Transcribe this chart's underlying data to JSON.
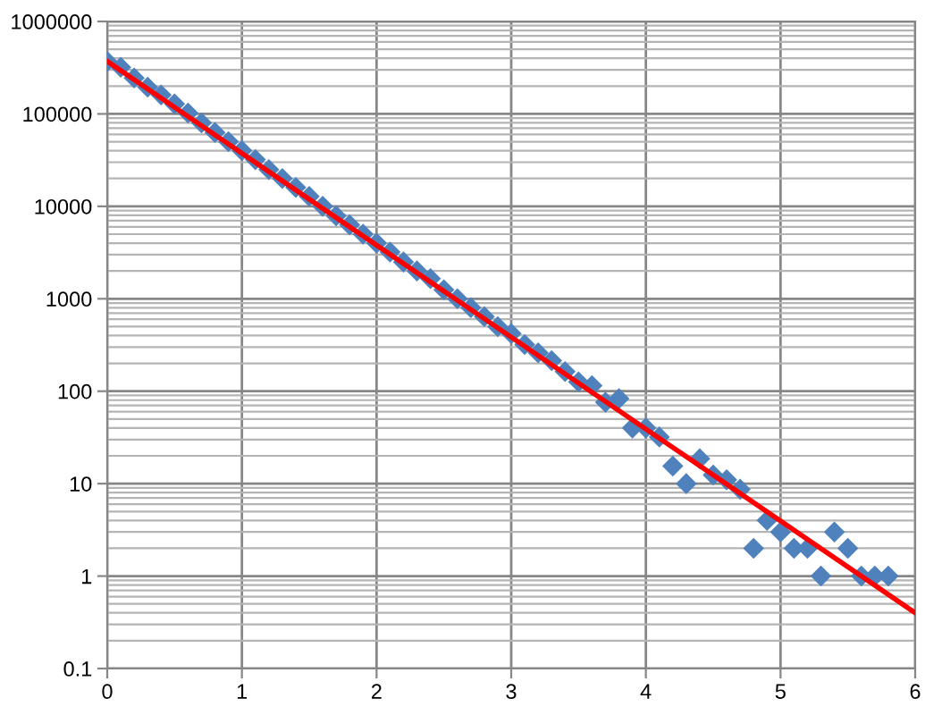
{
  "chart_data": {
    "type": "scatter",
    "log": "y",
    "grid": true,
    "legend": false,
    "xlim": [
      0,
      6
    ],
    "ylim": [
      0.1,
      1000000
    ],
    "xticks": [
      0,
      1,
      2,
      3,
      4,
      5,
      6
    ],
    "yticks": [
      0.1,
      1,
      10,
      100,
      1000,
      10000,
      100000,
      1000000
    ],
    "series": [
      {
        "color": "#4f81bd",
        "marker": "diamond",
        "x": [
          0,
          0.1,
          0.2,
          0.3,
          0.4,
          0.5,
          0.6,
          0.7,
          0.8,
          0.9,
          1.0,
          1.1,
          1.2,
          1.3,
          1.4,
          1.5,
          1.6,
          1.7,
          1.8,
          1.9,
          2.0,
          2.1,
          2.2,
          2.3,
          2.4,
          2.5,
          2.6,
          2.7,
          2.8,
          2.9,
          3.0,
          3.1,
          3.2,
          3.3,
          3.4,
          3.5,
          3.6,
          3.7,
          3.8,
          3.9,
          4.0,
          4.1,
          4.2,
          4.3,
          4.4,
          4.5,
          4.6,
          4.7,
          4.8,
          4.9,
          5.0,
          5.1,
          5.2,
          5.3,
          5.4,
          5.5,
          5.6,
          5.7,
          5.8
        ],
        "values": [
          370000,
          320000,
          245000,
          195000,
          160000,
          128000,
          102000,
          80000,
          63000,
          50000,
          40000,
          32000,
          25000,
          20000,
          16000,
          12800,
          10000,
          7900,
          6300,
          5000,
          4000,
          3200,
          2500,
          2000,
          1650,
          1250,
          1000,
          800,
          640,
          500,
          420,
          320,
          260,
          214,
          163,
          126,
          115,
          76,
          83,
          40,
          40,
          32,
          15.5,
          10,
          18.6,
          12.4,
          11,
          8.7,
          2,
          4,
          3,
          2,
          2,
          1,
          3,
          2,
          1,
          1,
          1
        ]
      },
      {
        "type": "line",
        "color": "#ff0000",
        "marker": "none",
        "x": [
          0,
          6
        ],
        "values": [
          370000,
          0.4
        ]
      }
    ]
  }
}
